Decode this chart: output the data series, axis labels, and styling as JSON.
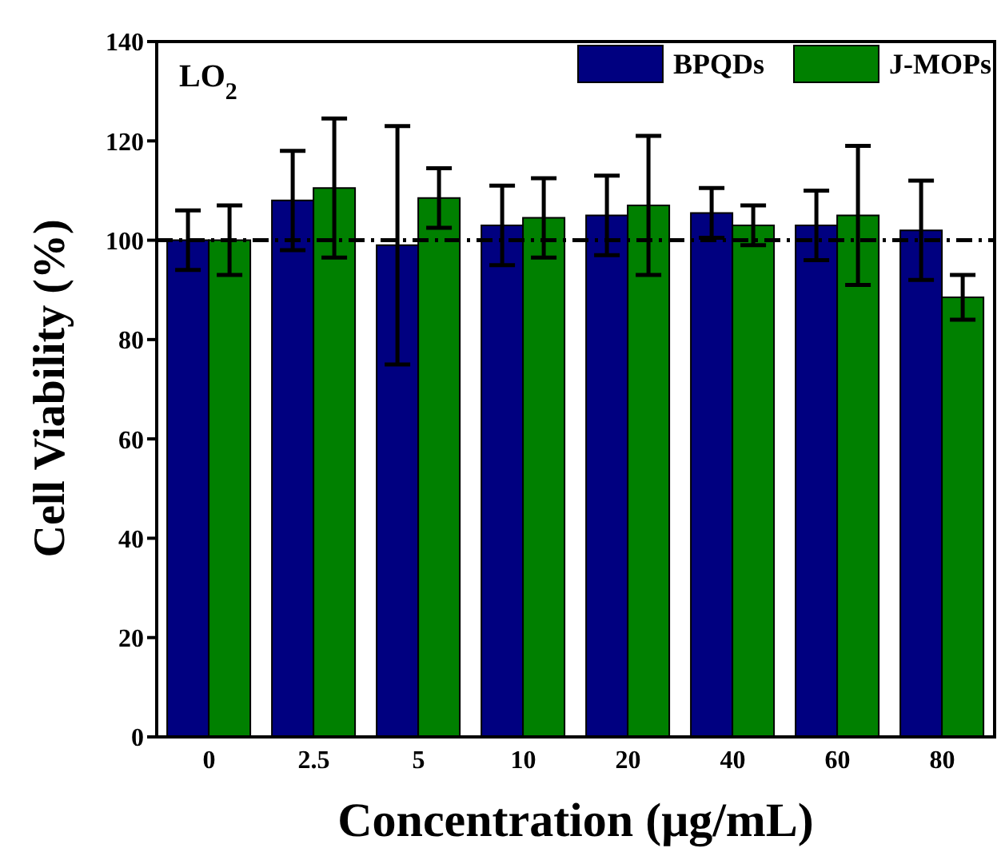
{
  "chart_data": {
    "type": "bar",
    "xlabel": "Concentration (μg/mL)",
    "ylabel": "Cell Viability (%)",
    "categories": [
      "0",
      "2.5",
      "5",
      "10",
      "20",
      "40",
      "60",
      "80"
    ],
    "series": [
      {
        "name": "BPQDs",
        "color": "#000080",
        "values": [
          100,
          108,
          99,
          103,
          105,
          105.5,
          103,
          102
        ],
        "errors": [
          6,
          10,
          24,
          8,
          8,
          5,
          7,
          10
        ]
      },
      {
        "name": "J-MOPs",
        "color": "#008000",
        "values": [
          100,
          110.5,
          108.5,
          104.5,
          107,
          103,
          105,
          88.5
        ],
        "errors": [
          7,
          14,
          6,
          8,
          14,
          4,
          14,
          4.5
        ]
      }
    ],
    "ylim": [
      0,
      140
    ],
    "yticks": [
      0,
      20,
      40,
      60,
      80,
      100,
      120,
      140
    ],
    "ref_lines": [
      {
        "axis": "y",
        "value": 100,
        "color": "#000000",
        "line_style": "dashdot"
      }
    ],
    "annotations": [
      "LO$_{2}$"
    ],
    "legend": "top right",
    "grid": false
  }
}
